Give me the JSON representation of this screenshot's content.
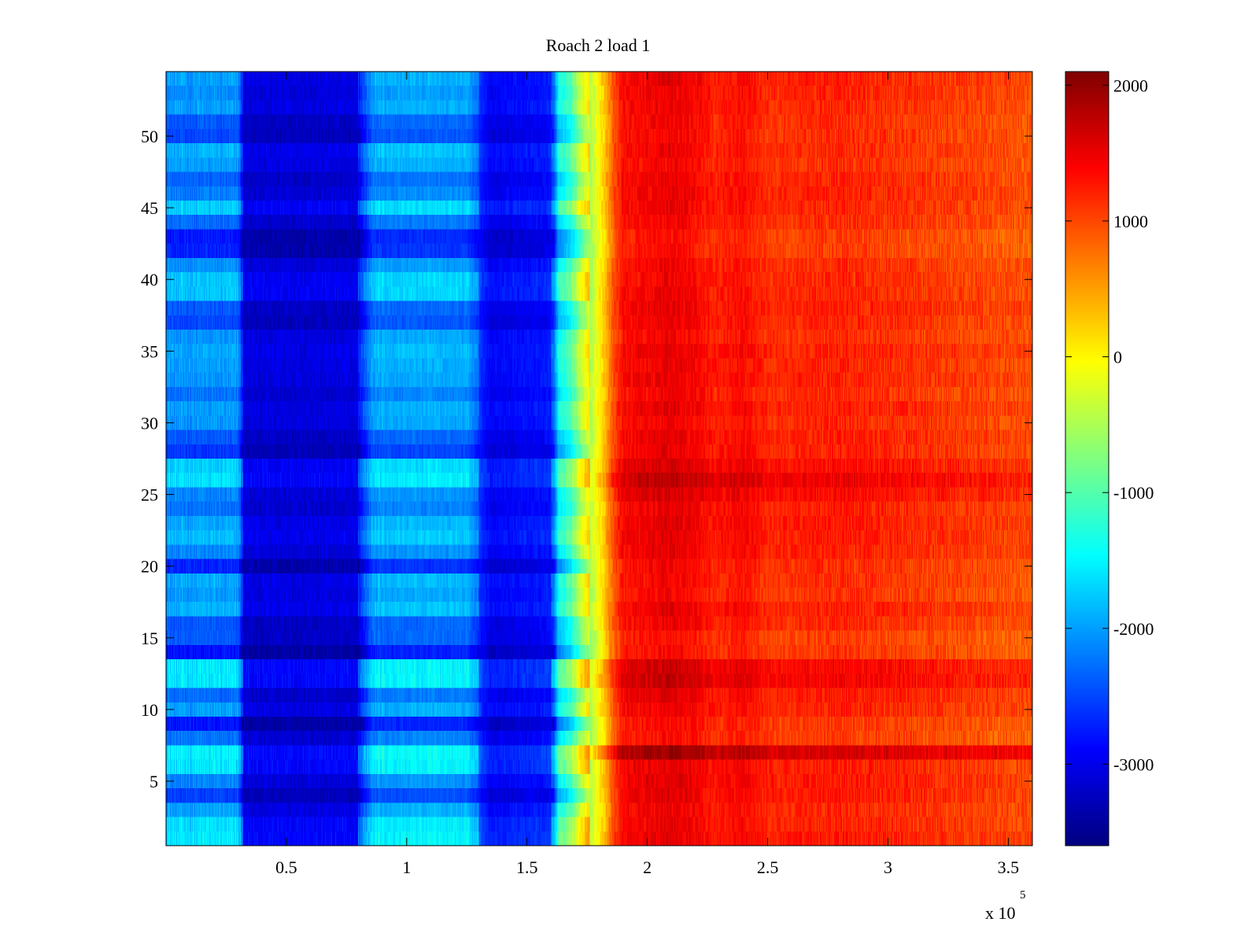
{
  "chart_data": {
    "type": "heatmap",
    "title": "Roach 2 load 1",
    "xlabel": "",
    "ylabel": "",
    "x_exponent_label": {
      "base": "x 10",
      "exponent": "5"
    },
    "xlim": [
      0,
      360000
    ],
    "ylim": [
      0.5,
      54.5
    ],
    "x_ticks": [
      {
        "value": 50000,
        "label": "0.5"
      },
      {
        "value": 100000,
        "label": "1"
      },
      {
        "value": 150000,
        "label": "1.5"
      },
      {
        "value": 200000,
        "label": "2"
      },
      {
        "value": 250000,
        "label": "2.5"
      },
      {
        "value": 300000,
        "label": "3"
      },
      {
        "value": 350000,
        "label": "3.5"
      }
    ],
    "y_ticks": [
      {
        "value": 5,
        "label": "5"
      },
      {
        "value": 10,
        "label": "10"
      },
      {
        "value": 15,
        "label": "15"
      },
      {
        "value": 20,
        "label": "20"
      },
      {
        "value": 25,
        "label": "25"
      },
      {
        "value": 30,
        "label": "30"
      },
      {
        "value": 35,
        "label": "35"
      },
      {
        "value": 40,
        "label": "40"
      },
      {
        "value": 45,
        "label": "45"
      },
      {
        "value": 50,
        "label": "50"
      }
    ],
    "rows": 54,
    "colorbar": {
      "colormap": "jet",
      "range": [
        -3600,
        2100
      ],
      "ticks": [
        {
          "value": 2000,
          "label": "2000"
        },
        {
          "value": 1000,
          "label": "1000"
        },
        {
          "value": 0,
          "label": "0"
        },
        {
          "value": -1000,
          "label": "-1000"
        },
        {
          "value": -2000,
          "label": "-2000"
        },
        {
          "value": -3000,
          "label": "-3000"
        }
      ]
    },
    "column_profile": [
      {
        "x": 0,
        "v": -2600
      },
      {
        "x": 30000,
        "v": -2600
      },
      {
        "x": 32000,
        "v": -3300
      },
      {
        "x": 80000,
        "v": -3300
      },
      {
        "x": 86000,
        "v": -2500
      },
      {
        "x": 125000,
        "v": -2500
      },
      {
        "x": 135000,
        "v": -3150
      },
      {
        "x": 158000,
        "v": -3000
      },
      {
        "x": 161000,
        "v": -2900
      },
      {
        "x": 163000,
        "v": -2000
      },
      {
        "x": 168000,
        "v": -1600
      },
      {
        "x": 172000,
        "v": -1000
      },
      {
        "x": 177000,
        "v": -300
      },
      {
        "x": 182000,
        "v": 350
      },
      {
        "x": 186000,
        "v": 1050
      },
      {
        "x": 190000,
        "v": 1450
      },
      {
        "x": 210000,
        "v": 1600
      },
      {
        "x": 220000,
        "v": 1500
      },
      {
        "x": 228000,
        "v": 1320
      },
      {
        "x": 240000,
        "v": 1450
      },
      {
        "x": 250000,
        "v": 1250
      },
      {
        "x": 280000,
        "v": 1300
      },
      {
        "x": 320000,
        "v": 1180
      },
      {
        "x": 360000,
        "v": 1050
      }
    ],
    "row_offsets_left": [
      1.0,
      0.95,
      0.6,
      0.05,
      0.45,
      1.0,
      1.05,
      0.35,
      -0.2,
      0.6,
      0.3,
      1.0,
      1.0,
      -0.2,
      0.2,
      0.2,
      0.7,
      0.55,
      0.65,
      -0.1,
      0.45,
      0.75,
      0.65,
      0.35,
      0.45,
      0.95,
      0.85,
      0.0,
      0.2,
      0.55,
      0.6,
      0.35,
      0.55,
      0.6,
      0.65,
      0.55,
      0.1,
      0.2,
      0.8,
      0.8,
      0.5,
      -0.1,
      -0.15,
      0.3,
      0.85,
      0.4,
      0.25,
      0.6,
      0.7,
      0.1,
      0.2,
      0.6,
      0.5,
      0.6
    ],
    "row_offsets_right": [
      -30,
      -80,
      -100,
      -30,
      -20,
      -50,
      350,
      -220,
      -200,
      -80,
      -30,
      130,
      100,
      -210,
      -250,
      -120,
      -60,
      -180,
      -150,
      -150,
      -60,
      -40,
      -20,
      -60,
      60,
      180,
      40,
      -80,
      -70,
      -120,
      -60,
      -140,
      -80,
      -100,
      -60,
      -150,
      -100,
      -60,
      -100,
      -120,
      -140,
      -230,
      -240,
      -150,
      -100,
      -80,
      -100,
      -170,
      -120,
      -140,
      -140,
      -120,
      -80,
      -60
    ]
  }
}
